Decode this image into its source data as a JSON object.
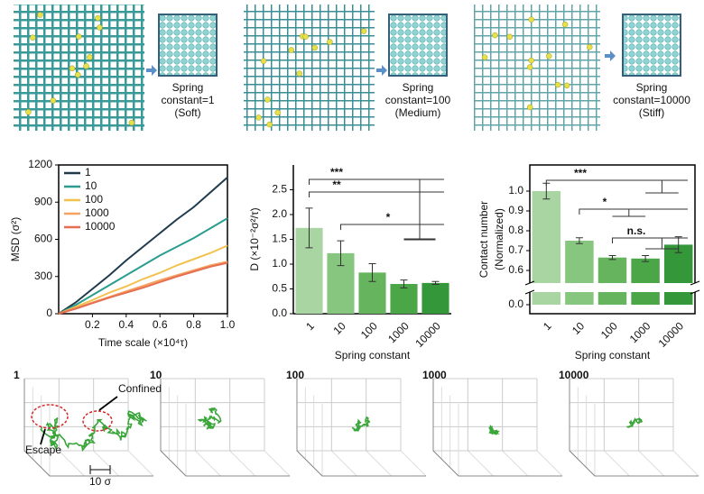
{
  "top_row": {
    "labels": [
      [
        "Spring",
        "constant=1",
        "(Soft)"
      ],
      [
        "Spring",
        "constant=100",
        "(Medium)"
      ],
      [
        "Spring",
        "constant=10000",
        "(Stiff)"
      ]
    ]
  },
  "chart_data": [
    {
      "type": "line",
      "xlabel": "Time scale (×10⁴τ)",
      "ylabel": "MSD (σ²)",
      "x": [
        0,
        0.1,
        0.2,
        0.3,
        0.4,
        0.5,
        0.6,
        0.7,
        0.8,
        0.9,
        1.0
      ],
      "series": [
        {
          "name": "1",
          "color": "#1f3b4d",
          "values": [
            0,
            90,
            200,
            310,
            430,
            540,
            650,
            760,
            860,
            980,
            1100
          ]
        },
        {
          "name": "10",
          "color": "#2a9d8f",
          "values": [
            0,
            70,
            150,
            230,
            310,
            390,
            470,
            540,
            610,
            690,
            770
          ]
        },
        {
          "name": "100",
          "color": "#f2c14e",
          "values": [
            0,
            55,
            110,
            170,
            220,
            280,
            330,
            390,
            440,
            490,
            550
          ]
        },
        {
          "name": "1000",
          "color": "#f4a261",
          "values": [
            0,
            45,
            90,
            135,
            180,
            225,
            270,
            310,
            350,
            390,
            420
          ]
        },
        {
          "name": "10000",
          "color": "#e76f51",
          "values": [
            0,
            40,
            85,
            130,
            170,
            210,
            255,
            300,
            340,
            380,
            410
          ]
        }
      ],
      "xlim": [
        0,
        1
      ],
      "xticks": [
        0.2,
        0.4,
        0.6,
        0.8,
        {
          "value": 1,
          "label": "1.0"
        }
      ],
      "ylim": [
        0,
        1200
      ],
      "yticks": [
        0,
        300,
        600,
        900,
        1200
      ],
      "legend": "top-left"
    },
    {
      "type": "bar",
      "xlabel": "Spring constant",
      "ylabel": "D (×10⁻²σ²/τ)",
      "categories": [
        "1",
        "10",
        "100",
        "1000",
        "10000"
      ],
      "values": [
        1.73,
        1.22,
        0.83,
        0.6,
        0.62
      ],
      "errors": [
        0.4,
        0.25,
        0.18,
        0.08,
        0.03
      ],
      "colors": [
        "#a8d5a2",
        "#86c67e",
        "#66b55e",
        "#4aa646",
        "#34983a"
      ],
      "ylim": [
        0,
        3
      ],
      "yticks": [
        {
          "value": 0,
          "label": "0.0"
        },
        0.5,
        {
          "value": 1,
          "label": "1.0"
        },
        1.5,
        {
          "value": 2,
          "label": "2.0"
        },
        2.5
      ],
      "annotations": [
        "***",
        "**",
        "*"
      ]
    },
    {
      "type": "bar",
      "xlabel": "Spring constant",
      "ylabel": [
        "Contact number",
        "(Normalized)"
      ],
      "categories": [
        "1",
        "10",
        "100",
        "1000",
        "10000"
      ],
      "values": [
        1.0,
        0.75,
        0.665,
        0.66,
        0.73
      ],
      "errors": [
        0.04,
        0.015,
        0.01,
        0.015,
        0.04
      ],
      "colors": [
        "#a8d5a2",
        "#86c67e",
        "#66b55e",
        "#4aa646",
        "#34983a"
      ],
      "ylim": [
        0,
        1.13
      ],
      "axis_break": [
        0.05,
        0.55
      ],
      "yticks": [
        {
          "value": 0,
          "label": "0.0"
        },
        0.6,
        0.7,
        0.8,
        0.9,
        {
          "value": 1,
          "label": "1.0"
        }
      ],
      "annotations": [
        "***",
        "*",
        "n.s."
      ]
    }
  ],
  "trajectories": {
    "labels": [
      "1",
      "10",
      "100",
      "1000",
      "10000"
    ],
    "annotations": [
      "Confined",
      "Escape",
      "10 σ"
    ]
  }
}
